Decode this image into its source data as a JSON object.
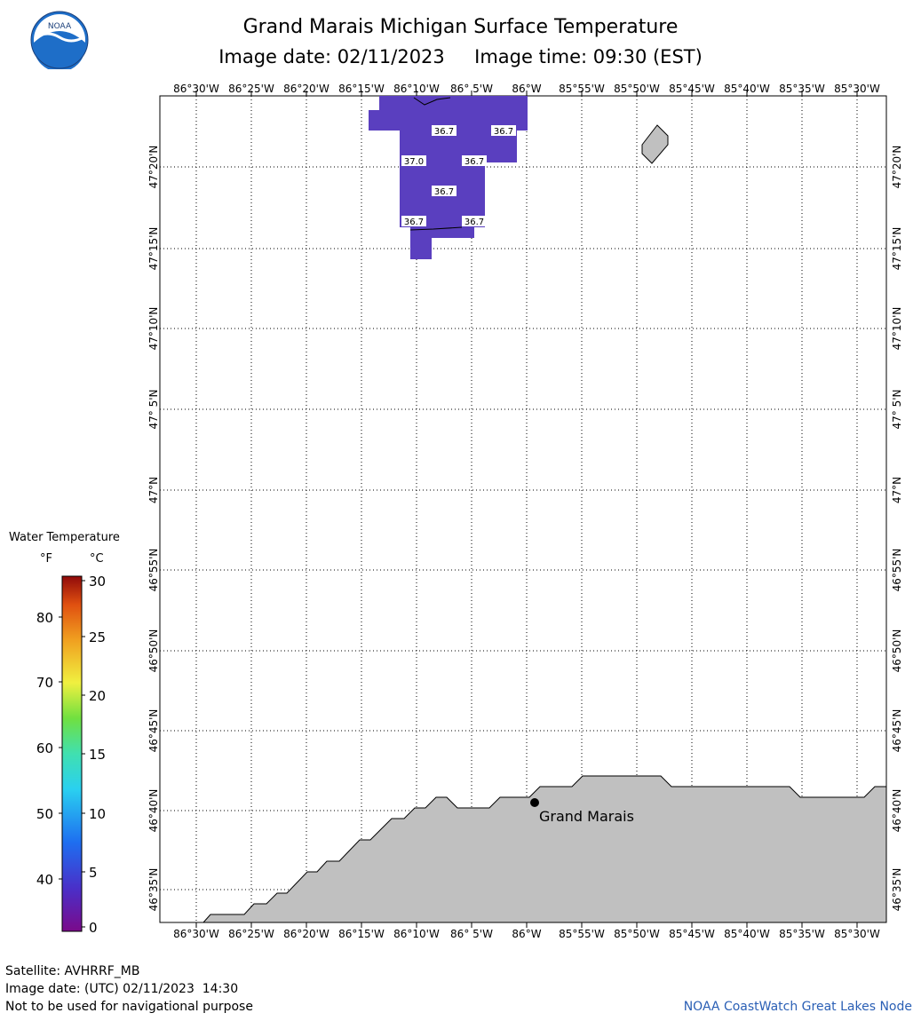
{
  "title": "Grand Marais Michigan Surface Temperature",
  "subtitle": "Image date: 02/11/2023     Image time: 09:30 (EST)",
  "logo_text": "NOAA",
  "lon_labels": [
    "86°30'W",
    "86°25'W",
    "86°20'W",
    "86°15'W",
    "86°10'W",
    "86° 5'W",
    "86°W",
    "85°55'W",
    "85°50'W",
    "85°45'W",
    "85°40'W",
    "85°35'W",
    "85°30'W"
  ],
  "lat_labels": [
    "47°20'N",
    "47°15'N",
    "47°10'N",
    "47° 5'N",
    "47°N",
    "46°55'N",
    "46°50'N",
    "46°45'N",
    "46°40'N",
    "46°35'N"
  ],
  "temp_points": [
    "36.7",
    "36.7",
    "37.0",
    "36.7",
    "36.7",
    "36.7",
    "36.7"
  ],
  "city": "Grand Marais",
  "legend": {
    "title": "Water Temperature",
    "unit_f": "°F",
    "unit_c": "°C",
    "f_ticks": [
      "80",
      "70",
      "60",
      "50",
      "40"
    ],
    "c_ticks": [
      "30",
      "25",
      "20",
      "15",
      "10",
      "5",
      "0"
    ]
  },
  "footer": {
    "satellite": "Satellite: AVHRRF_MB",
    "utc_date": "Image date: (UTC) 02/11/2023  14:30",
    "disclaimer": "Not to be used for navigational purpose",
    "credit": "NOAA CoastWatch Great Lakes Node"
  },
  "colors": {
    "water_cells": "#5a3fbf",
    "land": "#c0c0c0",
    "credit_text": "#2a5fb5"
  }
}
